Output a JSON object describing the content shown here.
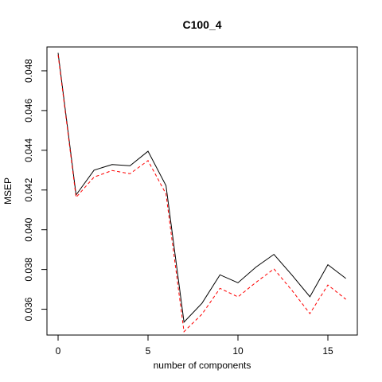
{
  "chart_data": {
    "type": "line",
    "title": "C100_4",
    "xlabel": "number of components",
    "ylabel": "MSEP",
    "xlim": [
      0,
      16
    ],
    "ylim": [
      0.0347,
      0.0492
    ],
    "x_ticks": [
      0,
      5,
      10,
      15
    ],
    "x_tick_labels": [
      "0",
      "5",
      "10",
      "15"
    ],
    "y_ticks": [
      0.036,
      0.038,
      0.04,
      0.042,
      0.044,
      0.046,
      0.048
    ],
    "y_tick_labels": [
      "0.036",
      "0.038",
      "0.040",
      "0.042",
      "0.044",
      "0.046",
      "0.048"
    ],
    "grid": false,
    "legend": "none",
    "x": [
      0,
      1,
      2,
      3,
      4,
      5,
      6,
      7,
      8,
      9,
      10,
      11,
      12,
      13,
      14,
      15,
      16
    ],
    "series": [
      {
        "color": "#000000",
        "dash": "solid",
        "values": [
          0.0489,
          0.04175,
          0.043,
          0.04328,
          0.04322,
          0.04395,
          0.04222,
          0.03535,
          0.0363,
          0.03773,
          0.03733,
          0.03812,
          0.03876,
          0.03772,
          0.03663,
          0.03824,
          0.03755
        ]
      },
      {
        "color": "#ff0000",
        "dash": "dashed",
        "values": [
          0.0488,
          0.04163,
          0.04265,
          0.04298,
          0.04282,
          0.04348,
          0.0418,
          0.03487,
          0.03575,
          0.03705,
          0.03662,
          0.03735,
          0.03803,
          0.03695,
          0.03578,
          0.03722,
          0.0365
        ]
      }
    ]
  }
}
